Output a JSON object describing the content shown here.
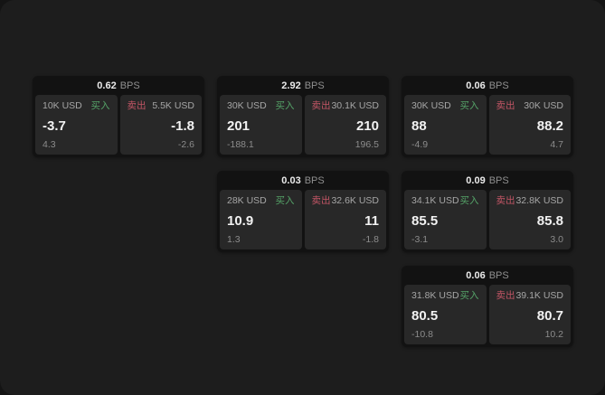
{
  "labels": {
    "bps_unit": "BPS",
    "buy": "买入",
    "sell": "卖出"
  },
  "colors": {
    "buy": "#55a368",
    "sell": "#c25565",
    "price": "#f2f2f2",
    "muted": "#8c8c8c",
    "card_bg": "#121212",
    "panel_bg": "#282828",
    "surface_bg": "#1d1d1d"
  },
  "cards": [
    {
      "bps": "0.62",
      "buy": {
        "amount": "10K USD",
        "price": "-3.7",
        "delta": "4.3"
      },
      "sell": {
        "amount": "5.5K USD",
        "price": "-1.8",
        "delta": "-2.6"
      }
    },
    {
      "bps": "2.92",
      "buy": {
        "amount": "30K USD",
        "price": "201",
        "delta": "-188.1"
      },
      "sell": {
        "amount": "30.1K USD",
        "price": "210",
        "delta": "196.5"
      }
    },
    {
      "bps": "0.06",
      "buy": {
        "amount": "30K USD",
        "price": "88",
        "delta": "-4.9"
      },
      "sell": {
        "amount": "30K USD",
        "price": "88.2",
        "delta": "4.7"
      }
    },
    {
      "bps": "0.03",
      "buy": {
        "amount": "28K USD",
        "price": "10.9",
        "delta": "1.3"
      },
      "sell": {
        "amount": "32.6K USD",
        "price": "11",
        "delta": "-1.8"
      }
    },
    {
      "bps": "0.09",
      "buy": {
        "amount": "34.1K USD",
        "price": "85.5",
        "delta": "-3.1"
      },
      "sell": {
        "amount": "32.8K USD",
        "price": "85.8",
        "delta": "3.0"
      }
    },
    {
      "bps": "0.06",
      "buy": {
        "amount": "31.8K USD",
        "price": "80.5",
        "delta": "-10.8"
      },
      "sell": {
        "amount": "39.1K USD",
        "price": "80.7",
        "delta": "10.2"
      }
    }
  ]
}
